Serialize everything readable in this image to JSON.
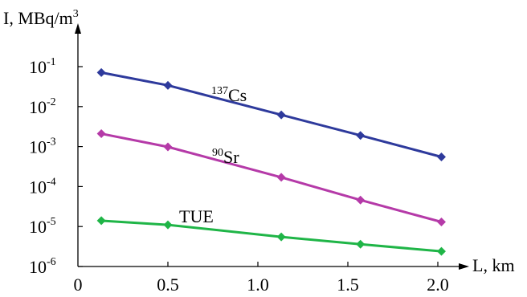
{
  "chart_data": {
    "type": "line",
    "y_scale": "log",
    "ylabel": {
      "base": "I, MBq/m",
      "sup": "3"
    },
    "xlabel": "L, km",
    "x_ticks": [
      {
        "value": 0,
        "label": "0"
      },
      {
        "value": 0.5,
        "label": "0.5"
      },
      {
        "value": 1.0,
        "label": "1.0"
      },
      {
        "value": 1.5,
        "label": "1.5"
      },
      {
        "value": 2.0,
        "label": "2.0"
      }
    ],
    "y_ticks": [
      {
        "value": 1e-06,
        "base": "10",
        "exp": "-6"
      },
      {
        "value": 1e-05,
        "base": "10",
        "exp": "-5"
      },
      {
        "value": 0.0001,
        "base": "10",
        "exp": "-4"
      },
      {
        "value": 0.001,
        "base": "10",
        "exp": "-3"
      },
      {
        "value": 0.01,
        "base": "10",
        "exp": "-2"
      },
      {
        "value": 0.1,
        "base": "10",
        "exp": "-1"
      }
    ],
    "xlim": [
      0,
      2.1
    ],
    "ylim": [
      1e-06,
      0.13
    ],
    "grid": false,
    "series": [
      {
        "label": {
          "pre": "137",
          "name": "Cs"
        },
        "color": "#2e3a9c",
        "x": [
          0.13,
          0.5,
          1.13,
          1.57,
          2.02
        ],
        "y": [
          0.071,
          0.034,
          0.0062,
          0.0019,
          0.00055
        ]
      },
      {
        "label": {
          "pre": "90",
          "name": "Sr"
        },
        "color": "#b53aa8",
        "x": [
          0.13,
          0.5,
          1.13,
          1.57,
          2.02
        ],
        "y": [
          0.0021,
          0.00098,
          0.00017,
          4.6e-05,
          1.3e-05
        ]
      },
      {
        "label": {
          "pre": "",
          "name": "TUE"
        },
        "color": "#1fb547",
        "x": [
          0.13,
          0.5,
          1.13,
          1.57,
          2.02
        ],
        "y": [
          1.4e-05,
          1.1e-05,
          5.5e-06,
          3.6e-06,
          2.4e-06
        ]
      }
    ]
  }
}
